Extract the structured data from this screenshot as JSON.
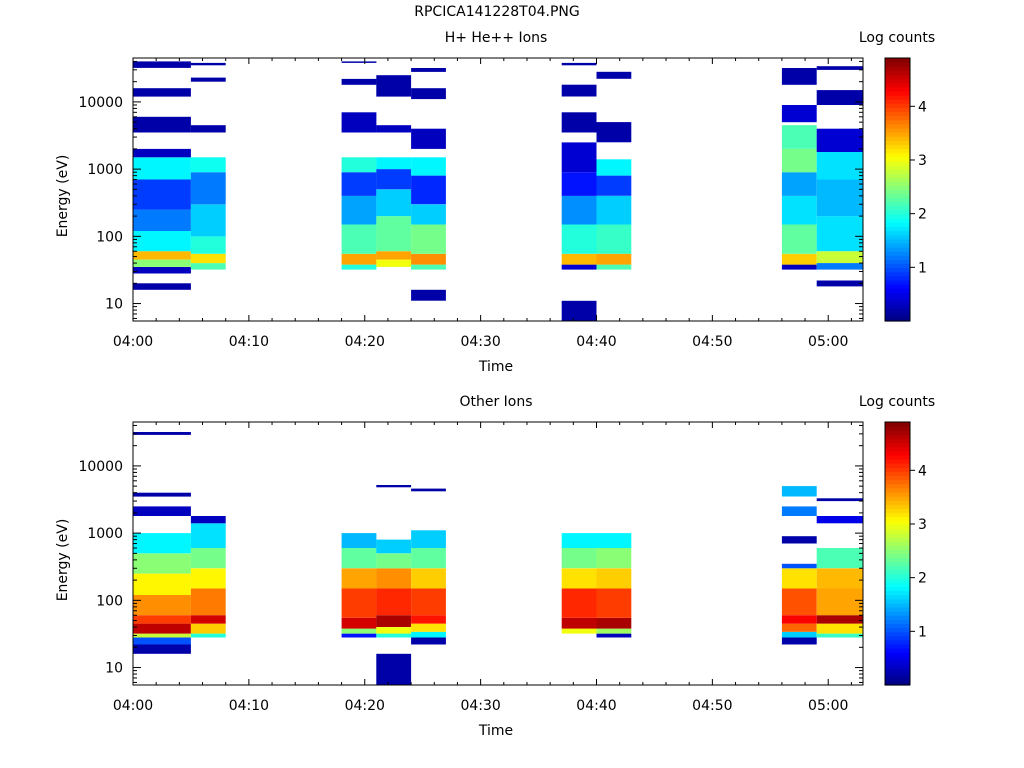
{
  "page_title": "RPCICA141228T04.PNG",
  "chart_data": [
    {
      "type": "heatmap",
      "title": "H+ He++ Ions",
      "xlabel": "Time",
      "ylabel": "Energy (eV)",
      "y_scale": "log",
      "xlim": [
        "04:00",
        "05:03"
      ],
      "ylim": [
        5.5,
        45000
      ],
      "x_ticks": [
        "04:00",
        "04:10",
        "04:20",
        "04:30",
        "04:40",
        "04:50",
        "05:00"
      ],
      "y_ticks": [
        "10",
        "100",
        "1000",
        "10000"
      ],
      "colorbar": {
        "label": "Log counts",
        "range": [
          0,
          4.9
        ],
        "ticks": [
          "1",
          "2",
          "3",
          "4"
        ],
        "colormap": "jet"
      },
      "time_blocks": [
        {
          "start": "04:00",
          "end": "04:05",
          "bands": [
            [
              28,
              35,
              0.3
            ],
            [
              35,
              45,
              2.5
            ],
            [
              45,
              60,
              3.4
            ],
            [
              60,
              120,
              1.8
            ],
            [
              120,
              250,
              1.2
            ],
            [
              250,
              700,
              0.9
            ],
            [
              700,
              1500,
              1.8
            ],
            [
              1500,
              2000,
              0.3
            ],
            [
              3500,
              6000,
              0.2
            ],
            [
              12000,
              16000,
              0.2
            ],
            [
              32000,
              40000,
              0.2
            ],
            [
              16,
              20,
              0.2
            ]
          ]
        },
        {
          "start": "04:05",
          "end": "04:08",
          "bands": [
            [
              32,
              40,
              2.2
            ],
            [
              40,
              55,
              3.2
            ],
            [
              55,
              100,
              2.0
            ],
            [
              100,
              300,
              1.6
            ],
            [
              300,
              900,
              1.2
            ],
            [
              900,
              1500,
              1.9
            ],
            [
              3500,
              4500,
              0.2
            ],
            [
              20000,
              23000,
              0.2
            ],
            [
              35000,
              38000,
              0.2
            ]
          ]
        },
        {
          "start": "04:18",
          "end": "04:21",
          "bands": [
            [
              32,
              38,
              2.0
            ],
            [
              38,
              55,
              3.5
            ],
            [
              55,
              150,
              2.2
            ],
            [
              150,
              400,
              1.4
            ],
            [
              400,
              900,
              0.9
            ],
            [
              900,
              1500,
              2.0
            ],
            [
              3500,
              7000,
              0.3
            ],
            [
              18000,
              22000,
              0.2
            ],
            [
              38000,
              40000,
              0.2
            ]
          ]
        },
        {
          "start": "04:21",
          "end": "04:24",
          "bands": [
            [
              35,
              45,
              3.0
            ],
            [
              45,
              60,
              3.5
            ],
            [
              60,
              200,
              2.3
            ],
            [
              200,
              500,
              1.6
            ],
            [
              500,
              1000,
              0.9
            ],
            [
              1000,
              1500,
              1.8
            ],
            [
              3500,
              4500,
              0.3
            ],
            [
              12000,
              25000,
              0.2
            ]
          ]
        },
        {
          "start": "04:24",
          "end": "04:27",
          "bands": [
            [
              32,
              38,
              2.2
            ],
            [
              38,
              55,
              3.6
            ],
            [
              55,
              150,
              2.4
            ],
            [
              150,
              300,
              1.6
            ],
            [
              300,
              800,
              0.8
            ],
            [
              800,
              1500,
              1.8
            ],
            [
              2000,
              4000,
              0.3
            ],
            [
              11000,
              16000,
              0.2
            ],
            [
              28000,
              32000,
              0.2
            ],
            [
              11,
              16,
              0.2
            ]
          ]
        },
        {
          "start": "04:37",
          "end": "04:40",
          "bands": [
            [
              32,
              38,
              0.4
            ],
            [
              38,
              55,
              3.4
            ],
            [
              55,
              150,
              2.0
            ],
            [
              150,
              400,
              1.3
            ],
            [
              400,
              900,
              0.7
            ],
            [
              900,
              2500,
              0.4
            ],
            [
              3500,
              7000,
              0.2
            ],
            [
              12000,
              18000,
              0.2
            ],
            [
              35000,
              38000,
              0.2
            ],
            [
              5.5,
              11,
              0.2
            ]
          ]
        },
        {
          "start": "04:40",
          "end": "04:43",
          "bands": [
            [
              32,
              38,
              2.2
            ],
            [
              38,
              55,
              3.5
            ],
            [
              55,
              150,
              2.1
            ],
            [
              150,
              400,
              1.6
            ],
            [
              400,
              800,
              0.9
            ],
            [
              800,
              1400,
              1.8
            ],
            [
              2500,
              5000,
              0.2
            ],
            [
              22000,
              28000,
              0.2
            ]
          ]
        },
        {
          "start": "04:56",
          "end": "04:59",
          "bands": [
            [
              32,
              38,
              0.3
            ],
            [
              38,
              55,
              3.3
            ],
            [
              55,
              150,
              2.3
            ],
            [
              150,
              400,
              1.7
            ],
            [
              400,
              900,
              1.4
            ],
            [
              900,
              2000,
              2.4
            ],
            [
              2000,
              4500,
              2.2
            ],
            [
              5000,
              9000,
              0.4
            ],
            [
              18000,
              32000,
              0.2
            ]
          ]
        },
        {
          "start": "04:59",
          "end": "05:03",
          "bands": [
            [
              18,
              22,
              0.2
            ],
            [
              32,
              40,
              1.2
            ],
            [
              40,
              60,
              2.8
            ],
            [
              60,
              200,
              1.7
            ],
            [
              200,
              700,
              1.5
            ],
            [
              700,
              1800,
              1.7
            ],
            [
              1800,
              4000,
              0.4
            ],
            [
              9000,
              15000,
              0.2
            ],
            [
              30000,
              34000,
              0.2
            ]
          ]
        }
      ]
    },
    {
      "type": "heatmap",
      "title": "Other Ions",
      "xlabel": "Time",
      "ylabel": "Energy (eV)",
      "y_scale": "log",
      "xlim": [
        "04:00",
        "05:03"
      ],
      "ylim": [
        5.5,
        45000
      ],
      "x_ticks": [
        "04:00",
        "04:10",
        "04:20",
        "04:30",
        "04:40",
        "04:50",
        "05:00"
      ],
      "y_ticks": [
        "10",
        "100",
        "1000",
        "10000"
      ],
      "colorbar": {
        "label": "Log counts",
        "range": [
          0,
          4.9
        ],
        "ticks": [
          "1",
          "2",
          "3",
          "4"
        ],
        "colormap": "jet"
      },
      "time_blocks": [
        {
          "start": "04:00",
          "end": "04:05",
          "bands": [
            [
              16,
              22,
              0.2
            ],
            [
              22,
              28,
              1.0
            ],
            [
              28,
              32,
              2.8
            ],
            [
              32,
              45,
              4.6
            ],
            [
              45,
              60,
              4.0
            ],
            [
              60,
              120,
              3.6
            ],
            [
              120,
              250,
              3.1
            ],
            [
              250,
              500,
              2.5
            ],
            [
              500,
              1000,
              1.8
            ],
            [
              1800,
              2500,
              0.3
            ],
            [
              3500,
              4000,
              0.2
            ],
            [
              29000,
              32000,
              0.2
            ]
          ]
        },
        {
          "start": "04:05",
          "end": "04:08",
          "bands": [
            [
              28,
              32,
              2.0
            ],
            [
              32,
              45,
              3.3
            ],
            [
              45,
              60,
              4.5
            ],
            [
              60,
              150,
              3.7
            ],
            [
              150,
              300,
              3.1
            ],
            [
              300,
              600,
              2.4
            ],
            [
              600,
              1400,
              1.7
            ],
            [
              1400,
              1800,
              0.3
            ]
          ]
        },
        {
          "start": "04:18",
          "end": "04:21",
          "bands": [
            [
              28,
              32,
              0.7
            ],
            [
              32,
              38,
              2.5
            ],
            [
              38,
              55,
              4.5
            ],
            [
              55,
              150,
              4.0
            ],
            [
              150,
              300,
              3.5
            ],
            [
              300,
              600,
              2.3
            ],
            [
              600,
              1000,
              1.5
            ]
          ]
        },
        {
          "start": "04:21",
          "end": "04:24",
          "bands": [
            [
              5.5,
              16,
              0.2
            ],
            [
              28,
              32,
              2.0
            ],
            [
              32,
              40,
              3.0
            ],
            [
              40,
              60,
              4.7
            ],
            [
              60,
              150,
              4.1
            ],
            [
              150,
              300,
              3.6
            ],
            [
              300,
              500,
              2.4
            ],
            [
              500,
              800,
              1.6
            ],
            [
              4800,
              5200,
              0.2
            ]
          ]
        },
        {
          "start": "04:24",
          "end": "04:27",
          "bands": [
            [
              22,
              28,
              0.2
            ],
            [
              28,
              34,
              1.8
            ],
            [
              34,
              45,
              3.2
            ],
            [
              45,
              60,
              4.2
            ],
            [
              60,
              150,
              4.0
            ],
            [
              150,
              300,
              3.3
            ],
            [
              300,
              600,
              2.3
            ],
            [
              600,
              1100,
              1.6
            ],
            [
              4200,
              4600,
              0.2
            ]
          ]
        },
        {
          "start": "04:37",
          "end": "04:40",
          "bands": [
            [
              32,
              38,
              3.0
            ],
            [
              38,
              55,
              4.6
            ],
            [
              55,
              150,
              4.1
            ],
            [
              150,
              300,
              3.2
            ],
            [
              300,
              600,
              2.4
            ],
            [
              600,
              1000,
              1.8
            ]
          ]
        },
        {
          "start": "04:40",
          "end": "04:43",
          "bands": [
            [
              28,
              32,
              0.3
            ],
            [
              32,
              38,
              2.6
            ],
            [
              38,
              55,
              4.7
            ],
            [
              55,
              150,
              4.0
            ],
            [
              150,
              300,
              3.3
            ],
            [
              300,
              600,
              2.5
            ],
            [
              600,
              1000,
              1.8
            ]
          ]
        },
        {
          "start": "04:56",
          "end": "04:59",
          "bands": [
            [
              22,
              28,
              0.2
            ],
            [
              28,
              34,
              1.6
            ],
            [
              34,
              45,
              3.8
            ],
            [
              45,
              60,
              4.3
            ],
            [
              60,
              150,
              3.9
            ],
            [
              150,
              300,
              3.2
            ],
            [
              300,
              350,
              1.0
            ],
            [
              700,
              900,
              0.2
            ],
            [
              1800,
              2500,
              1.2
            ],
            [
              3500,
              5000,
              1.5
            ]
          ]
        },
        {
          "start": "04:59",
          "end": "05:03",
          "bands": [
            [
              28,
              32,
              2.1
            ],
            [
              32,
              45,
              3.2
            ],
            [
              45,
              60,
              4.7
            ],
            [
              60,
              150,
              3.5
            ],
            [
              150,
              300,
              3.4
            ],
            [
              300,
              600,
              2.2
            ],
            [
              1400,
              1800,
              0.5
            ],
            [
              3000,
              3300,
              0.2
            ]
          ]
        }
      ]
    }
  ]
}
